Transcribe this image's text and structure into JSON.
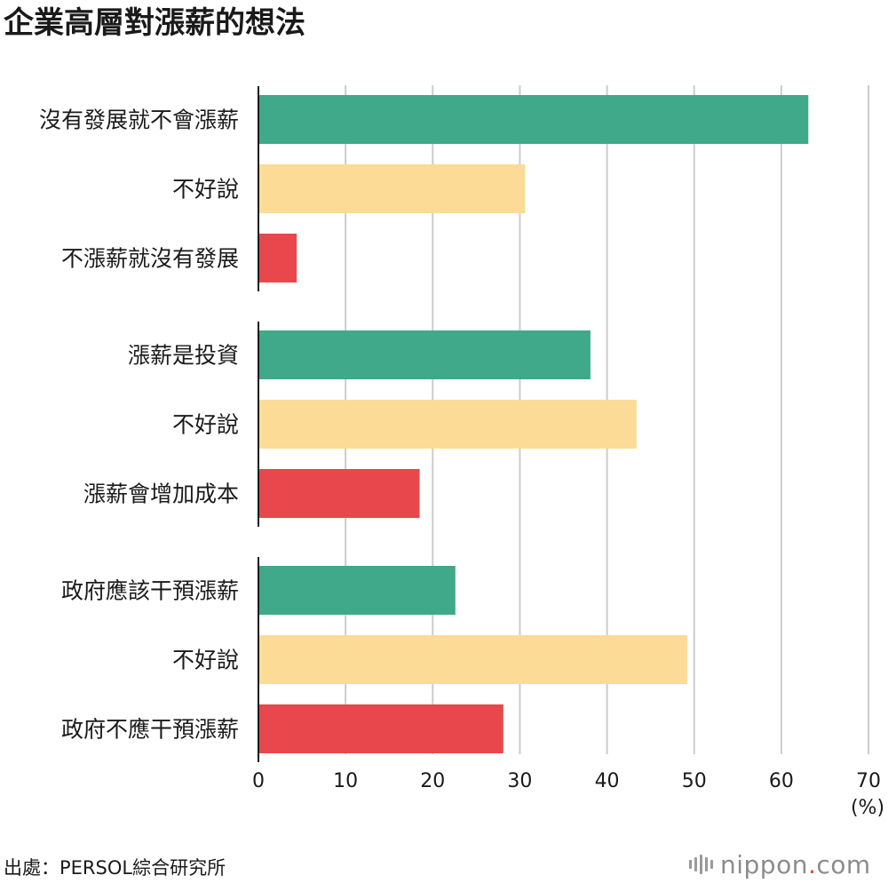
{
  "chart_data": {
    "type": "bar",
    "orientation": "horizontal",
    "title": "企業高層對漲薪的想法",
    "unit": "(%)",
    "xlim": [
      0,
      70
    ],
    "xticks": [
      0,
      10,
      20,
      30,
      40,
      50,
      60,
      70
    ],
    "grid": true,
    "groups": [
      {
        "bars": [
          {
            "label": "沒有發展就不會漲薪",
            "value": 63.1,
            "color": "#3fa98a"
          },
          {
            "label": "不好說",
            "value": 30.6,
            "color": "#fcdb97"
          },
          {
            "label": "不漲薪就沒有發展",
            "value": 4.4,
            "color": "#e8474b"
          }
        ]
      },
      {
        "bars": [
          {
            "label": "漲薪是投資",
            "value": 38.1,
            "color": "#3fa98a"
          },
          {
            "label": "不好說",
            "value": 43.4,
            "color": "#fcdb97"
          },
          {
            "label": "漲薪會增加成本",
            "value": 18.5,
            "color": "#e8474b"
          }
        ]
      },
      {
        "bars": [
          {
            "label": "政府應該干預漲薪",
            "value": 22.6,
            "color": "#3fa98a"
          },
          {
            "label": "不好說",
            "value": 49.2,
            "color": "#fcdb97"
          },
          {
            "label": "政府不應干預漲薪",
            "value": 28.1,
            "color": "#e8474b"
          }
        ]
      }
    ]
  },
  "source": "出處：PERSOL綜合研究所",
  "brand": {
    "prefix": "nippon",
    "dot": ".",
    "suffix": "com"
  },
  "colors": {
    "grid": "#cccccc",
    "axis": "#1a1a1a"
  }
}
